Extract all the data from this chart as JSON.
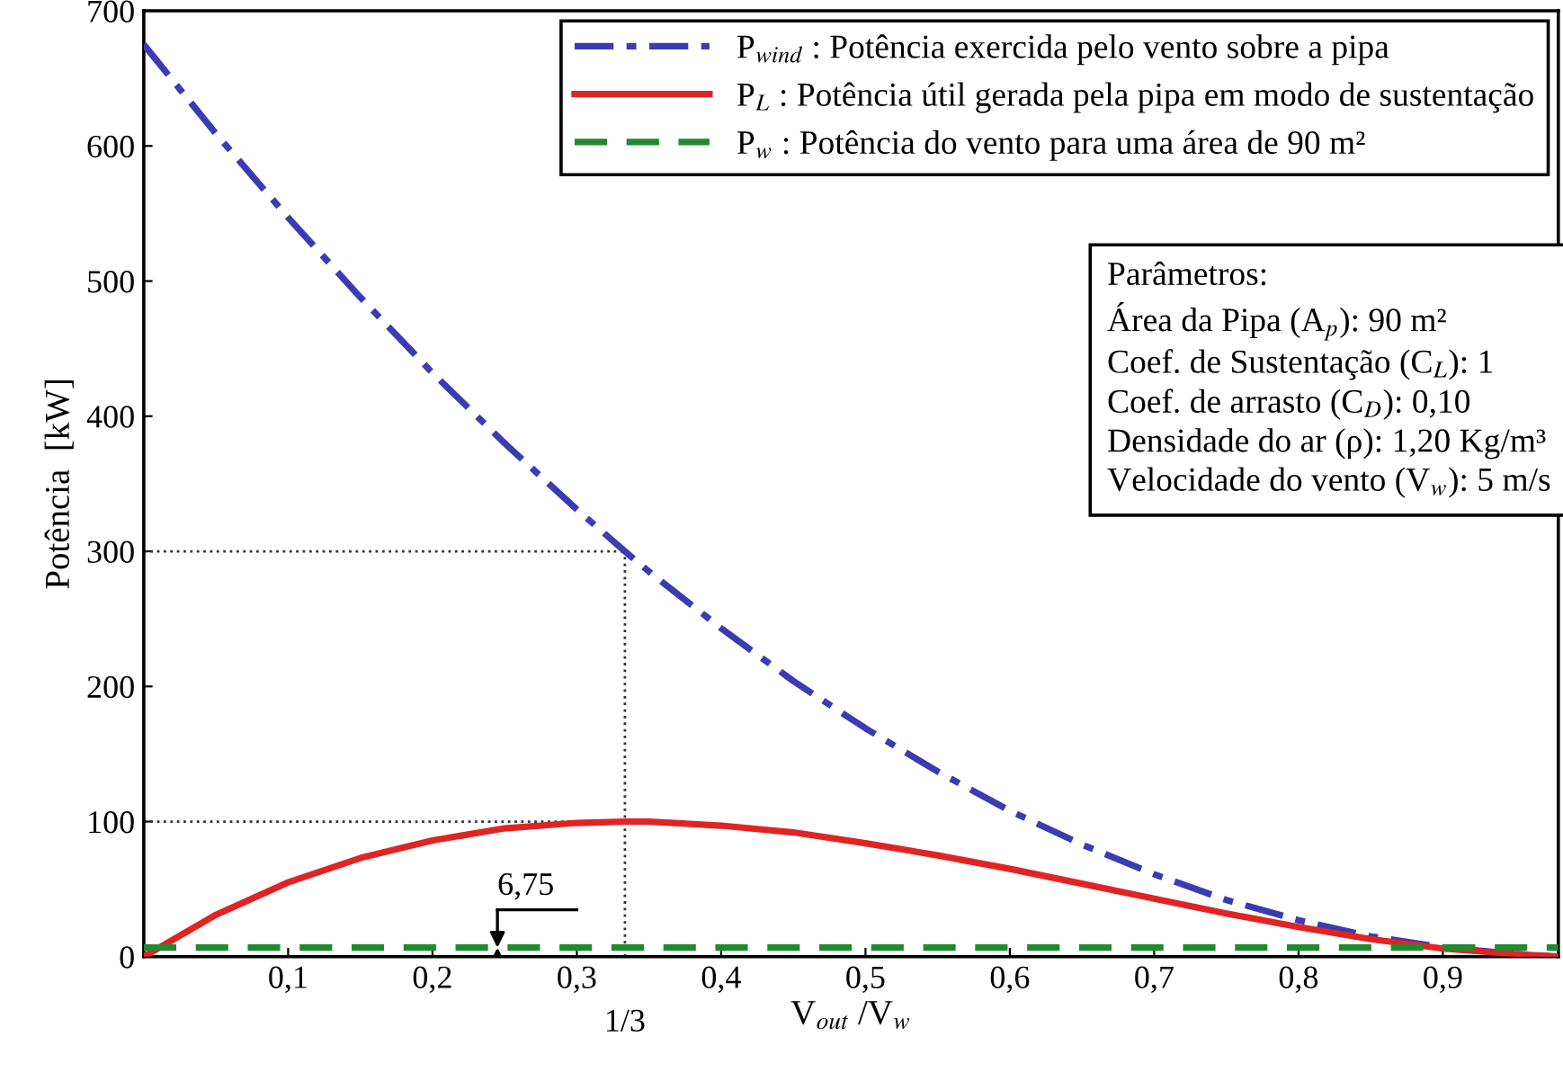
{
  "chart_data": {
    "type": "line",
    "xlabel": "V$_{out}$ /V$_{w}$",
    "ylabel": "Potência  [kW]",
    "x": [
      0,
      0.05,
      0.1,
      0.15,
      0.2,
      0.25,
      0.3,
      0.333333,
      0.35,
      0.4,
      0.45,
      0.5,
      0.55,
      0.6,
      0.65,
      0.7,
      0.75,
      0.8,
      0.85,
      0.9,
      0.95,
      0.98
    ],
    "series": [
      {
        "name": "P$_{wind}$ : Potência exercida pelo vento sobre a pipa",
        "color": "#3b3bb3",
        "line_style": "dashdot",
        "values": [
          675,
          609,
          547,
          488,
          432,
          380,
          331,
          300,
          285,
          243,
          204,
          169,
          137,
          108,
          83,
          61,
          42,
          27,
          15,
          7,
          2,
          0
        ]
      },
      {
        "name": "P$_{L}$ : Potência útil gerada pela pipa em modo de sustentação",
        "color": "#e02424",
        "line_style": "solid",
        "values": [
          0,
          31,
          55,
          73,
          86,
          95,
          99,
          100,
          100,
          97,
          92,
          84,
          75,
          65,
          54,
          43,
          32,
          22,
          13,
          6,
          2,
          0
        ]
      },
      {
        "name": "P$_{w}$ : Potência do vento para uma área de 90 m²",
        "color": "#1f8a2e",
        "line_style": "dashed",
        "x": [
          0,
          0.98
        ],
        "values": [
          6.75,
          6.75
        ]
      }
    ],
    "xlim": [
      0,
      0.98
    ],
    "ylim": [
      0,
      700
    ],
    "xticks": [
      {
        "value": 0.1,
        "label": "0,1"
      },
      {
        "value": 0.2,
        "label": "0,2"
      },
      {
        "value": 0.3,
        "label": "0,3"
      },
      {
        "value": 0.4,
        "label": "0,4"
      },
      {
        "value": 0.5,
        "label": "0,5"
      },
      {
        "value": 0.6,
        "label": "0,6"
      },
      {
        "value": 0.7,
        "label": "0,7"
      },
      {
        "value": 0.8,
        "label": "0,8"
      },
      {
        "value": 0.9,
        "label": "0,9"
      }
    ],
    "yticks": [
      0,
      100,
      200,
      300,
      400,
      500,
      600,
      700
    ],
    "ref_lines": [
      {
        "axis": "y",
        "value": 300,
        "line_style": "dotted",
        "color": "#333333"
      },
      {
        "axis": "y",
        "value": 100,
        "line_style": "dotted",
        "color": "#333333"
      },
      {
        "axis": "x",
        "value": 0.333333,
        "line_style": "dotted",
        "color": "#333333"
      }
    ],
    "legend": "top right",
    "grid": false,
    "marker": "none",
    "annotations": [
      "Parâmetros:\nÁrea da Pipa (A$_{p}$): 90 m²\nCoef. de Sustentação (C$_{L}$): 1\nCoef. de arrasto (C$_{D}$): 0,10\nDensidade do ar (ρ): 1,20 Kg/m³\nVelocidade do vento (V$_{w}$): 5 m/s",
      {
        "text": "6,75",
        "x": 0.245,
        "y": 6.75
      },
      "1/3"
    ]
  }
}
